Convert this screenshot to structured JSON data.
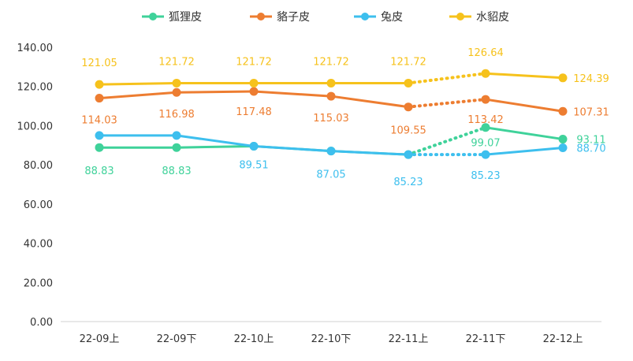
{
  "chart_data": {
    "type": "line",
    "categories": [
      "22-09上",
      "22-09下",
      "22-10上",
      "22-10下",
      "22-11上",
      "22-11下",
      "22-12上"
    ],
    "ylim": [
      0,
      140
    ],
    "yticks": [
      "0.00",
      "20.00",
      "40.00",
      "60.00",
      "80.00",
      "100.00",
      "120.00",
      "140.00"
    ],
    "grid": false,
    "legend_position": "top-center",
    "dotted_segment": [
      4,
      5
    ],
    "series": [
      {
        "name": "狐狸皮",
        "color": "#3fd29a",
        "values": [
          88.83,
          88.83,
          89.51,
          87.05,
          85.23,
          99.07,
          93.11
        ],
        "labels": [
          "88.83",
          "88.83",
          "",
          "",
          "",
          "99.07",
          "93.11"
        ]
      },
      {
        "name": "貉子皮",
        "color": "#ed7d31",
        "values": [
          114.03,
          116.98,
          117.48,
          115.03,
          109.55,
          113.42,
          107.31
        ],
        "labels": [
          "114.03",
          "116.98",
          "117.48",
          "115.03",
          "109.55",
          "113.42",
          "107.31"
        ]
      },
      {
        "name": "兔皮",
        "color": "#3dbfee",
        "values": [
          95.0,
          95.0,
          89.51,
          87.05,
          85.23,
          85.23,
          88.7
        ],
        "labels": [
          "",
          "",
          "89.51",
          "87.05",
          "85.23",
          "85.23",
          "88.70"
        ]
      },
      {
        "name": "水貂皮",
        "color": "#f6c21c",
        "values": [
          121.05,
          121.72,
          121.72,
          121.72,
          121.72,
          126.64,
          124.39
        ],
        "labels": [
          "121.05",
          "121.72",
          "121.72",
          "121.72",
          "121.72",
          "126.64",
          "124.39"
        ]
      }
    ]
  }
}
